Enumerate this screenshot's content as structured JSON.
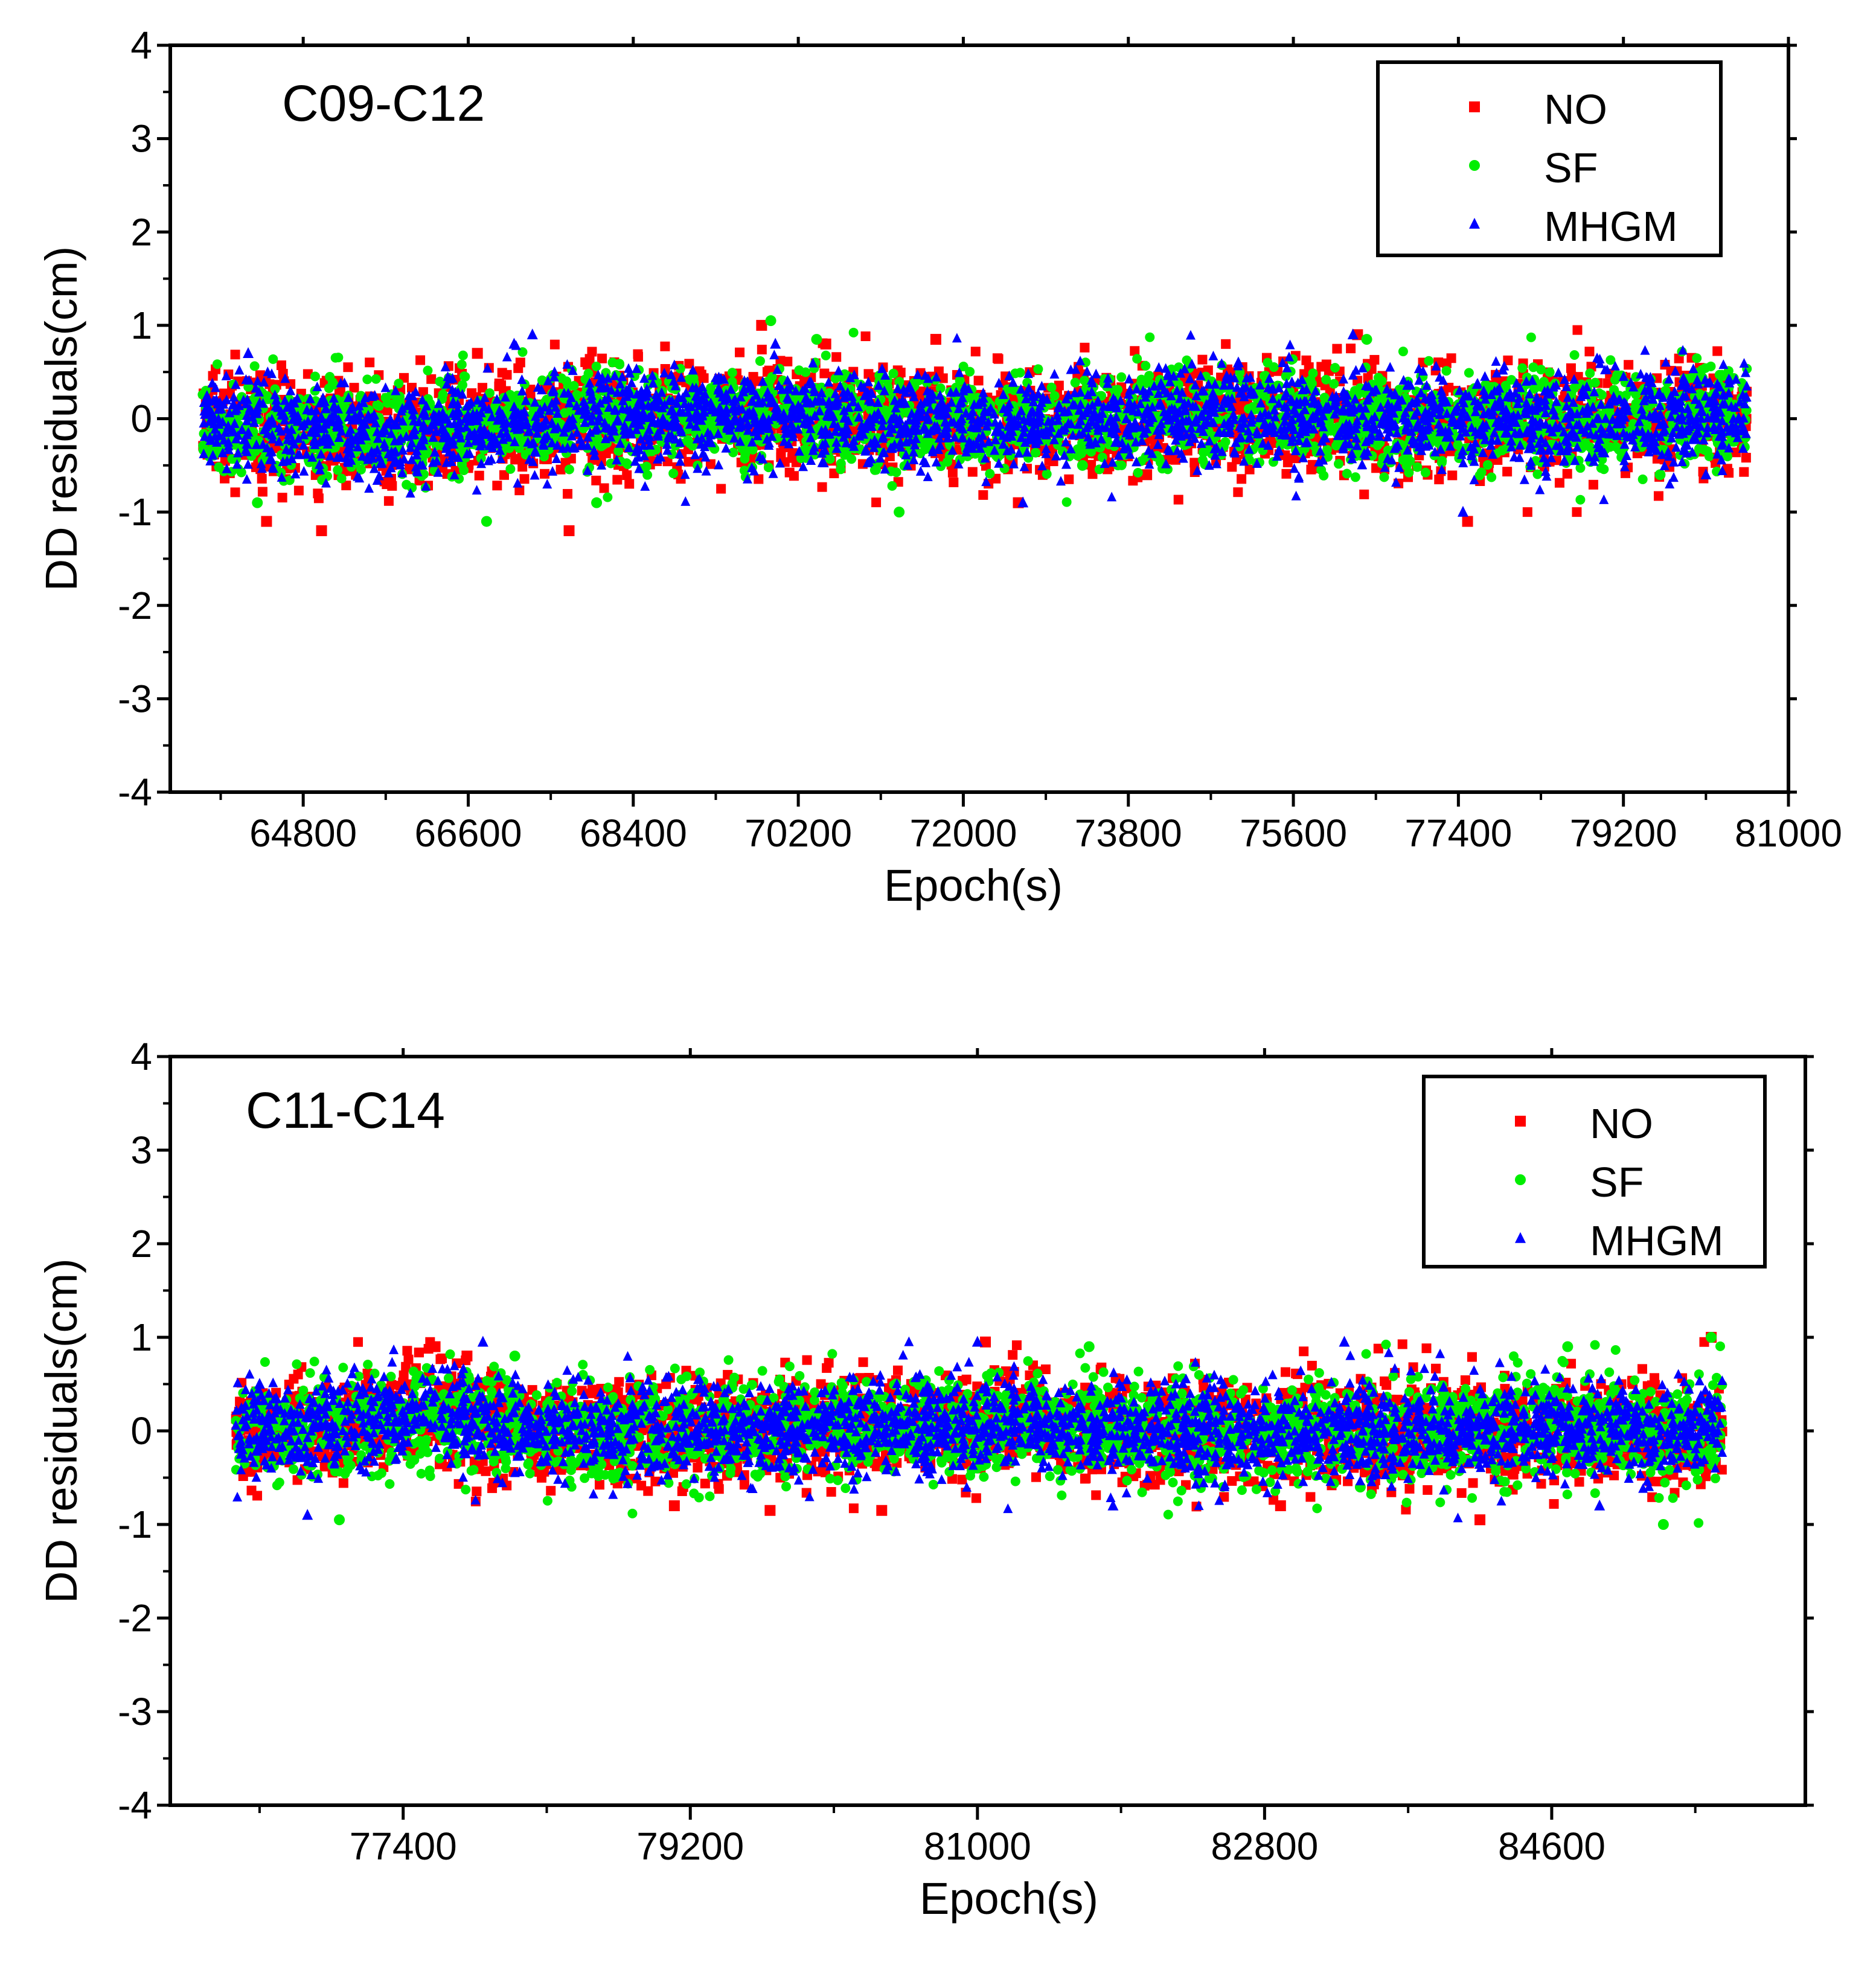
{
  "chart_data": [
    {
      "type": "scatter",
      "title": "C09-C12",
      "xlabel": "Epoch(s)",
      "ylabel": "DD residuals(cm)",
      "xlim": [
        63350,
        81000
      ],
      "ylim": [
        -4,
        4
      ],
      "x_ticks": [
        64800,
        66600,
        68400,
        70200,
        72000,
        73800,
        75600,
        77400,
        79200,
        81000
      ],
      "y_ticks": [
        -4,
        -3,
        -2,
        -1,
        0,
        1,
        2,
        3,
        4
      ],
      "x_range_data": [
        63700,
        80550
      ],
      "legend_position": "top-right",
      "series": [
        {
          "name": "NO",
          "color": "#ff0000",
          "marker": "square",
          "spread": 0.28,
          "points": [
            [
              64400,
              -1.1
            ],
            [
              65000,
              -1.2
            ],
            [
              67700,
              -1.2
            ],
            [
              72600,
              -0.9
            ],
            [
              77500,
              -1.1
            ],
            [
              76300,
              0.9
            ],
            [
              69800,
              1.0
            ],
            [
              70500,
              0.8
            ],
            [
              71700,
              0.85
            ],
            [
              65200,
              0.3
            ],
            [
              74000,
              -0.6
            ],
            [
              66700,
              0.7
            ]
          ]
        },
        {
          "name": "SF",
          "color": "#00ee00",
          "marker": "circle",
          "spread": 0.26,
          "points": [
            [
              66800,
              -1.1
            ],
            [
              69900,
              1.05
            ],
            [
              70400,
              0.85
            ],
            [
              76400,
              0.85
            ],
            [
              64300,
              -0.9
            ],
            [
              68000,
              -0.9
            ],
            [
              71300,
              -1.0
            ],
            [
              73300,
              -0.5
            ],
            [
              79600,
              -0.6
            ]
          ]
        },
        {
          "name": "MHGM",
          "color": "#0000ff",
          "marker": "triangle",
          "spread": 0.25,
          "points": [
            [
              67300,
              0.9
            ],
            [
              67100,
              0.8
            ],
            [
              69950,
              0.8
            ],
            [
              76250,
              0.9
            ],
            [
              77450,
              -1.0
            ],
            [
              72650,
              -0.9
            ],
            [
              64200,
              0.7
            ],
            [
              75000,
              0.6
            ],
            [
              80100,
              -0.6
            ]
          ]
        }
      ]
    },
    {
      "type": "scatter",
      "title": "C11-C14",
      "xlabel": "Epoch(s)",
      "ylabel": "DD residuals(cm)",
      "xlim": [
        75940,
        86190
      ],
      "ylim": [
        -4,
        4
      ],
      "x_ticks": [
        77400,
        79200,
        81000,
        82800,
        84600
      ],
      "y_ticks": [
        -4,
        -3,
        -2,
        -1,
        0,
        1,
        2,
        3,
        4
      ],
      "x_range_data": [
        76350,
        85670
      ],
      "legend_position": "top-right",
      "series": [
        {
          "name": "NO",
          "color": "#ff0000",
          "marker": "square",
          "spread": 0.27,
          "points": [
            [
              77600,
              0.9
            ],
            [
              77800,
              0.8
            ],
            [
              81050,
              0.95
            ],
            [
              84150,
              -0.95
            ],
            [
              85600,
              1.0
            ],
            [
              82900,
              -0.8
            ],
            [
              79100,
              -0.8
            ],
            [
              80400,
              -0.85
            ],
            [
              79700,
              -0.85
            ]
          ]
        },
        {
          "name": "SF",
          "color": "#00ee00",
          "marker": "circle",
          "spread": 0.27,
          "points": [
            [
              77000,
              -0.95
            ],
            [
              84700,
              0.9
            ],
            [
              85300,
              -1.0
            ],
            [
              85600,
              1.0
            ],
            [
              78100,
              0.8
            ],
            [
              81700,
              0.9
            ],
            [
              83400,
              -0.6
            ]
          ]
        },
        {
          "name": "MHGM",
          "color": "#0000ff",
          "marker": "triangle",
          "spread": 0.25,
          "points": [
            [
              77900,
              0.95
            ],
            [
              76800,
              -0.9
            ],
            [
              83300,
              0.95
            ],
            [
              81000,
              0.95
            ],
            [
              81850,
              -0.8
            ],
            [
              84900,
              -0.8
            ],
            [
              76500,
              0.5
            ]
          ]
        }
      ]
    }
  ]
}
